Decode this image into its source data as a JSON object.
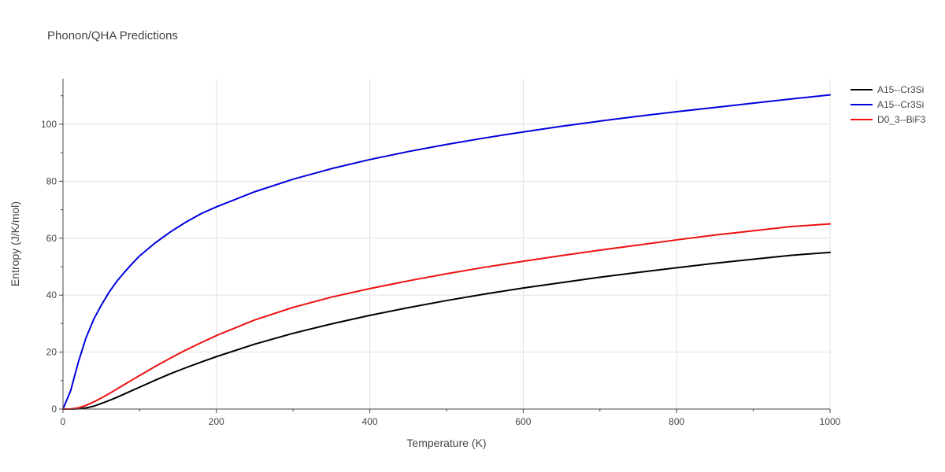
{
  "chart_data": {
    "type": "line",
    "title": "Phonon/QHA Predictions",
    "xlabel": "Temperature (K)",
    "ylabel": "Entropy (J/K/mol)",
    "xlim": [
      0,
      1000
    ],
    "ylim": [
      0,
      116
    ],
    "x_ticks": [
      0,
      200,
      400,
      600,
      800,
      1000
    ],
    "y_ticks": [
      0,
      20,
      40,
      60,
      80,
      100
    ],
    "grid": true,
    "legend_position": "top-right",
    "x": [
      0,
      10,
      20,
      30,
      40,
      50,
      60,
      70,
      80,
      90,
      100,
      120,
      140,
      160,
      180,
      200,
      250,
      300,
      350,
      400,
      450,
      500,
      550,
      600,
      650,
      700,
      750,
      800,
      850,
      900,
      950,
      1000
    ],
    "series": [
      {
        "name": "A15--Cr3Si",
        "color": "#000000",
        "values": [
          0,
          0,
          0.1,
          0.4,
          1.0,
          2.0,
          3.0,
          4.1,
          5.3,
          6.5,
          7.7,
          10.1,
          12.4,
          14.5,
          16.5,
          18.4,
          22.8,
          26.6,
          29.9,
          32.9,
          35.6,
          38.1,
          40.4,
          42.5,
          44.4,
          46.3,
          48.0,
          49.6,
          51.2,
          52.6,
          54.0,
          55.0
        ]
      },
      {
        "name": "A15--Cr3Si",
        "color": "#0000dd",
        "values": [
          0,
          6.5,
          16.5,
          25.0,
          31.5,
          36.5,
          41.0,
          44.8,
          48.0,
          51.0,
          53.8,
          58.3,
          62.2,
          65.6,
          68.6,
          71.0,
          76.3,
          80.7,
          84.4,
          87.6,
          90.4,
          92.9,
          95.2,
          97.3,
          99.3,
          101.1,
          102.8,
          104.4,
          105.9,
          107.4,
          108.9,
          110.3
        ]
      },
      {
        "name": "D0_3--BiF3",
        "color": "#ee1111",
        "values": [
          0,
          0.05,
          0.4,
          1.3,
          2.5,
          3.9,
          5.4,
          7.0,
          8.6,
          10.2,
          11.8,
          14.9,
          17.9,
          20.7,
          23.3,
          25.8,
          31.3,
          35.7,
          39.3,
          42.3,
          45.0,
          47.5,
          49.8,
          51.9,
          53.9,
          55.8,
          57.6,
          59.4,
          61.1,
          62.6,
          64.1,
          65.0
        ]
      }
    ]
  }
}
